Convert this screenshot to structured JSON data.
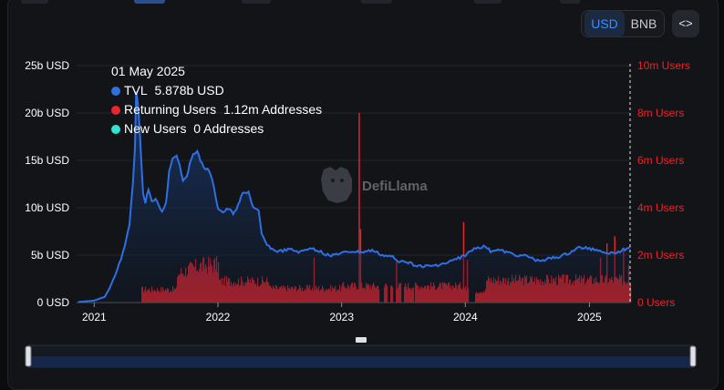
{
  "toolbar": {
    "usd_label": "USD",
    "bnb_label": "BNB",
    "embed_label": "<>"
  },
  "watermark": {
    "text": "DefiLlama"
  },
  "tooltip": {
    "date": "01 May 2025",
    "rows": [
      {
        "label": "TVL",
        "value": "5.878b USD",
        "color": "#2f6fe4"
      },
      {
        "label": "Returning Users",
        "value": "1.12m Addresses",
        "color": "#e8252c"
      },
      {
        "label": "New Users",
        "value": "0 Addresses",
        "color": "#2ee6d6"
      }
    ]
  },
  "chart_data": {
    "type": "line",
    "x_ticks": [
      "2021",
      "2022",
      "2023",
      "2024",
      "2025"
    ],
    "y_left": {
      "ticks": [
        "0 USD",
        "5b USD",
        "10b USD",
        "15b USD",
        "20b USD",
        "25b USD"
      ],
      "range": [
        0,
        25
      ],
      "unit": "b USD"
    },
    "y_right": {
      "ticks": [
        "0 Users",
        "2m Users",
        "4m Users",
        "6m Users",
        "8m Users",
        "10m Users"
      ],
      "range": [
        0,
        10
      ],
      "unit": "m Users"
    },
    "grid": true,
    "series": [
      {
        "name": "TVL",
        "color": "#2f6fe4",
        "axis": "left",
        "points": [
          [
            "2020-11-15",
            0.05
          ],
          [
            "2021-01-01",
            0.2
          ],
          [
            "2021-02-01",
            0.6
          ],
          [
            "2021-02-20",
            1.8
          ],
          [
            "2021-03-10",
            3.4
          ],
          [
            "2021-04-01",
            5.8
          ],
          [
            "2021-04-15",
            8.2
          ],
          [
            "2021-04-25",
            12.5
          ],
          [
            "2021-05-01",
            16.0
          ],
          [
            "2021-05-05",
            22.3
          ],
          [
            "2021-05-10",
            21.0
          ],
          [
            "2021-05-15",
            18.5
          ],
          [
            "2021-05-20",
            14.8
          ],
          [
            "2021-05-25",
            11.5
          ],
          [
            "2021-06-01",
            10.5
          ],
          [
            "2021-06-10",
            12.0
          ],
          [
            "2021-06-20",
            10.6
          ],
          [
            "2021-07-01",
            10.8
          ],
          [
            "2021-07-10",
            10.3
          ],
          [
            "2021-07-20",
            9.5
          ],
          [
            "2021-08-01",
            10.6
          ],
          [
            "2021-08-10",
            13.8
          ],
          [
            "2021-08-20",
            15.2
          ],
          [
            "2021-09-01",
            15.6
          ],
          [
            "2021-09-10",
            14.5
          ],
          [
            "2021-09-20",
            12.9
          ],
          [
            "2021-10-01",
            13.4
          ],
          [
            "2021-10-10",
            14.6
          ],
          [
            "2021-10-20",
            15.8
          ],
          [
            "2021-11-01",
            15.9
          ],
          [
            "2021-11-10",
            15.0
          ],
          [
            "2021-11-20",
            14.3
          ],
          [
            "2021-12-01",
            14.0
          ],
          [
            "2021-12-10",
            13.6
          ],
          [
            "2021-12-20",
            12.1
          ],
          [
            "2022-01-01",
            10.0
          ],
          [
            "2022-01-15",
            9.5
          ],
          [
            "2022-02-01",
            9.9
          ],
          [
            "2022-02-15",
            9.4
          ],
          [
            "2022-03-01",
            10.2
          ],
          [
            "2022-03-15",
            11.5
          ],
          [
            "2022-04-01",
            11.7
          ],
          [
            "2022-04-15",
            10.0
          ],
          [
            "2022-05-01",
            9.6
          ],
          [
            "2022-05-10",
            7.2
          ],
          [
            "2022-05-20",
            6.5
          ],
          [
            "2022-06-01",
            5.9
          ],
          [
            "2022-06-15",
            5.5
          ],
          [
            "2022-07-01",
            5.4
          ],
          [
            "2022-08-01",
            5.6
          ],
          [
            "2022-09-01",
            5.3
          ],
          [
            "2022-10-01",
            5.8
          ],
          [
            "2022-10-20",
            5.4
          ],
          [
            "2022-11-01",
            5.5
          ],
          [
            "2022-11-10",
            5.1
          ],
          [
            "2022-12-01",
            5.0
          ],
          [
            "2023-01-01",
            5.2
          ],
          [
            "2023-02-01",
            5.4
          ],
          [
            "2023-03-01",
            5.3
          ],
          [
            "2023-04-01",
            5.5
          ],
          [
            "2023-05-01",
            5.0
          ],
          [
            "2023-06-01",
            4.8
          ],
          [
            "2023-06-15",
            4.3
          ],
          [
            "2023-07-01",
            4.5
          ],
          [
            "2023-08-01",
            4.0
          ],
          [
            "2023-09-01",
            3.8
          ],
          [
            "2023-10-01",
            3.9
          ],
          [
            "2023-11-01",
            4.1
          ],
          [
            "2023-12-01",
            4.5
          ],
          [
            "2024-01-01",
            5.0
          ],
          [
            "2024-02-01",
            5.8
          ],
          [
            "2024-03-01",
            5.9
          ],
          [
            "2024-03-15",
            5.4
          ],
          [
            "2024-04-01",
            5.6
          ],
          [
            "2024-05-01",
            5.3
          ],
          [
            "2024-06-01",
            5.0
          ],
          [
            "2024-07-01",
            4.9
          ],
          [
            "2024-08-01",
            4.4
          ],
          [
            "2024-09-01",
            4.6
          ],
          [
            "2024-10-01",
            4.8
          ],
          [
            "2024-11-01",
            5.2
          ],
          [
            "2024-12-01",
            5.8
          ],
          [
            "2025-01-01",
            5.7
          ],
          [
            "2025-02-01",
            5.5
          ],
          [
            "2025-03-01",
            5.2
          ],
          [
            "2025-04-01",
            5.4
          ],
          [
            "2025-05-01",
            5.878
          ]
        ]
      },
      {
        "name": "Returning Users",
        "color": "#e8252c",
        "axis": "right",
        "spikes": [
          [
            "2022-10-10",
            1.9
          ],
          [
            "2023-02-20",
            8.0
          ],
          [
            "2023-02-24",
            3.1
          ],
          [
            "2023-06-10",
            1.7
          ],
          [
            "2023-12-25",
            3.4
          ],
          [
            "2024-01-05",
            1.8
          ],
          [
            "2024-10-15",
            1.2
          ],
          [
            "2025-02-01",
            1.9
          ],
          [
            "2025-02-20",
            2.5
          ],
          [
            "2025-03-15",
            2.8
          ],
          [
            "2025-04-10",
            2.3
          ],
          [
            "2025-04-25",
            1.6
          ]
        ],
        "gaps": [
          [
            "2023-04-22",
            "2023-05-05"
          ],
          [
            "2023-05-15",
            "2023-05-22"
          ],
          [
            "2023-06-01",
            "2023-06-08"
          ],
          [
            "2023-06-25",
            "2023-07-02"
          ],
          [
            "2023-08-01",
            "2023-08-05"
          ],
          [
            "2024-01-10",
            "2024-01-28"
          ]
        ]
      },
      {
        "name": "New Users",
        "color": "#2ee6d6",
        "axis": "right",
        "value": 0
      }
    ]
  }
}
